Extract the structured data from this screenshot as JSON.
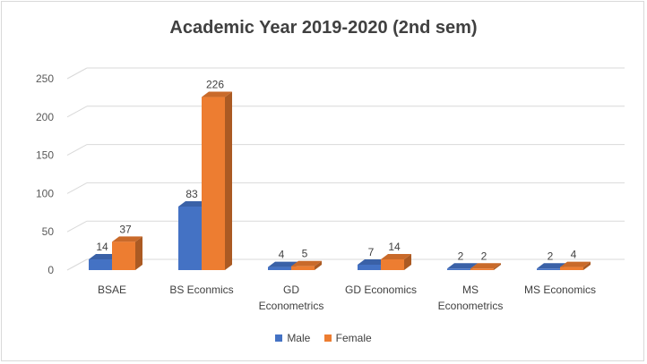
{
  "chart_data": {
    "type": "bar",
    "title": "Academic Year 2019-2020 (2nd sem)",
    "categories": [
      "BSAE",
      "BS Econmics",
      "GD Econometrics",
      "GD Economics",
      "MS Econometrics",
      "MS Economics"
    ],
    "series": [
      {
        "name": "Male",
        "values": [
          14,
          83,
          4,
          7,
          2,
          2
        ],
        "color": "#4472c4"
      },
      {
        "name": "Female",
        "values": [
          37,
          226,
          5,
          14,
          2,
          4
        ],
        "color": "#ed7d31"
      }
    ],
    "y_ticks": [
      "0",
      "50",
      "100",
      "150",
      "200",
      "250"
    ],
    "ylim": [
      0,
      250
    ],
    "grid": true,
    "legend_position": "bottom",
    "data_labels": true,
    "style": "3d-bar"
  }
}
